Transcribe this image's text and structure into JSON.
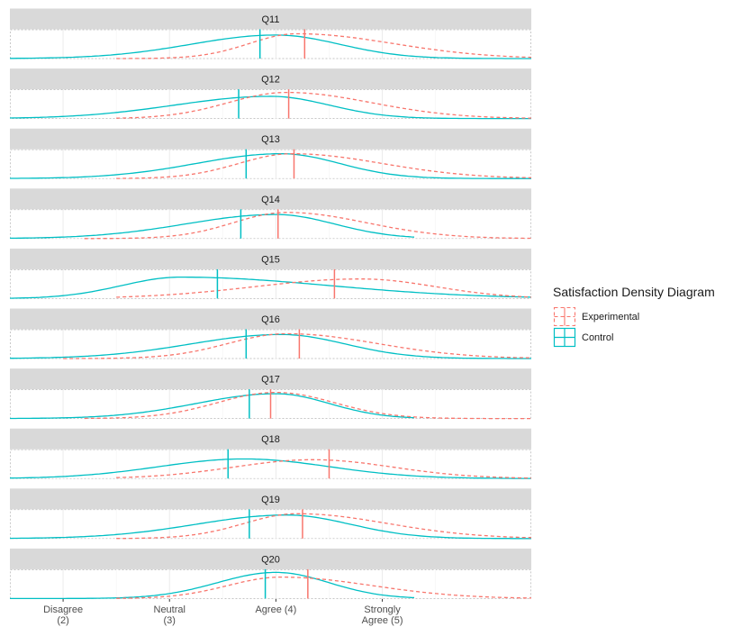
{
  "chart_data": {
    "type": "line",
    "subtype": "density",
    "facet_layout": "single-column",
    "x_ticks": [
      {
        "value": 2,
        "label": "Disagree\n(2)"
      },
      {
        "value": 3,
        "label": "Neutral\n(3)"
      },
      {
        "value": 4,
        "label": "Agree (4)"
      },
      {
        "value": 5,
        "label": "Strongly\nAgree (5)"
      }
    ],
    "xlim": [
      1.5,
      6.4
    ],
    "grid": true,
    "legend": {
      "title": "Satisfaction Density Diagram",
      "position": "right",
      "entries": [
        {
          "name": "Experimental",
          "linetype": "dashed",
          "color": "#F8766D"
        },
        {
          "name": "Control",
          "linetype": "solid",
          "color": "#00BFC4"
        }
      ]
    },
    "series_style": {
      "Experimental": {
        "color": "#F8766D",
        "linetype": "dashed"
      },
      "Control": {
        "color": "#00BFC4",
        "linetype": "solid"
      }
    },
    "panels": [
      {
        "label": "Q11",
        "Experimental": {
          "peak": 4.2,
          "sd_left": 0.45,
          "sd_right": 0.9,
          "height": 0.95,
          "mean": 4.27,
          "range": [
            2.5,
            6.4
          ]
        },
        "Control": {
          "peak": 4.0,
          "sd_left": 0.8,
          "sd_right": 0.6,
          "height": 0.9,
          "mean": 3.85,
          "range": [
            1.5,
            6.4
          ]
        }
      },
      {
        "label": "Q12",
        "Experimental": {
          "peak": 4.1,
          "sd_left": 0.55,
          "sd_right": 0.8,
          "height": 1.0,
          "mean": 4.12,
          "range": [
            2.5,
            6.4
          ]
        },
        "Control": {
          "peak": 3.95,
          "sd_left": 0.9,
          "sd_right": 0.55,
          "height": 0.85,
          "mean": 3.65,
          "range": [
            1.5,
            6.4
          ]
        }
      },
      {
        "label": "Q13",
        "Experimental": {
          "peak": 4.15,
          "sd_left": 0.5,
          "sd_right": 0.85,
          "height": 0.95,
          "mean": 4.17,
          "range": [
            2.5,
            6.4
          ]
        },
        "Control": {
          "peak": 4.05,
          "sd_left": 0.8,
          "sd_right": 0.55,
          "height": 0.95,
          "mean": 3.72,
          "range": [
            1.5,
            6.4
          ]
        }
      },
      {
        "label": "Q14",
        "Experimental": {
          "peak": 4.1,
          "sd_left": 0.5,
          "sd_right": 0.75,
          "height": 1.0,
          "mean": 4.02,
          "range": [
            2.2,
            6.4
          ]
        },
        "Control": {
          "peak": 4.0,
          "sd_left": 0.85,
          "sd_right": 0.55,
          "height": 0.92,
          "mean": 3.67,
          "range": [
            1.5,
            5.3
          ]
        }
      },
      {
        "label": "Q15",
        "Experimental": {
          "peak": 4.8,
          "sd_left": 1.0,
          "sd_right": 0.7,
          "height": 0.75,
          "mean": 4.55,
          "range": [
            2.5,
            6.4
          ]
        },
        "Control": {
          "peak": 3.1,
          "sd_left": 0.55,
          "sd_right": 1.4,
          "height": 0.82,
          "mean": 3.45,
          "range": [
            1.5,
            6.4
          ]
        }
      },
      {
        "label": "Q16",
        "Experimental": {
          "peak": 4.1,
          "sd_left": 0.55,
          "sd_right": 0.85,
          "height": 0.95,
          "mean": 4.22,
          "range": [
            2.0,
            6.4
          ]
        },
        "Control": {
          "peak": 4.05,
          "sd_left": 0.85,
          "sd_right": 0.6,
          "height": 0.92,
          "mean": 3.72,
          "range": [
            1.5,
            6.4
          ]
        }
      },
      {
        "label": "Q17",
        "Experimental": {
          "peak": 4.0,
          "sd_left": 0.55,
          "sd_right": 0.55,
          "height": 1.0,
          "mean": 3.95,
          "range": [
            2.2,
            6.4
          ]
        },
        "Control": {
          "peak": 4.0,
          "sd_left": 0.75,
          "sd_right": 0.5,
          "height": 0.95,
          "mean": 3.75,
          "range": [
            1.5,
            5.3
          ]
        }
      },
      {
        "label": "Q18",
        "Experimental": {
          "peak": 4.35,
          "sd_left": 0.75,
          "sd_right": 0.75,
          "height": 0.72,
          "mean": 4.5,
          "range": [
            2.5,
            6.4
          ]
        },
        "Control": {
          "peak": 3.7,
          "sd_left": 0.8,
          "sd_right": 0.8,
          "height": 0.75,
          "mean": 3.55,
          "range": [
            1.5,
            6.4
          ]
        }
      },
      {
        "label": "Q19",
        "Experimental": {
          "peak": 4.2,
          "sd_left": 0.5,
          "sd_right": 0.85,
          "height": 0.95,
          "mean": 4.25,
          "range": [
            2.5,
            6.4
          ]
        },
        "Control": {
          "peak": 4.1,
          "sd_left": 0.85,
          "sd_right": 0.6,
          "height": 0.9,
          "mean": 3.75,
          "range": [
            1.5,
            6.4
          ]
        }
      },
      {
        "label": "Q20",
        "Experimental": {
          "peak": 4.05,
          "sd_left": 0.5,
          "sd_right": 0.85,
          "height": 0.82,
          "mean": 4.3,
          "range": [
            2.5,
            6.4
          ]
        },
        "Control": {
          "peak": 4.0,
          "sd_left": 0.55,
          "sd_right": 0.5,
          "height": 1.0,
          "mean": 3.9,
          "range": [
            1.5,
            5.3
          ]
        }
      }
    ]
  }
}
